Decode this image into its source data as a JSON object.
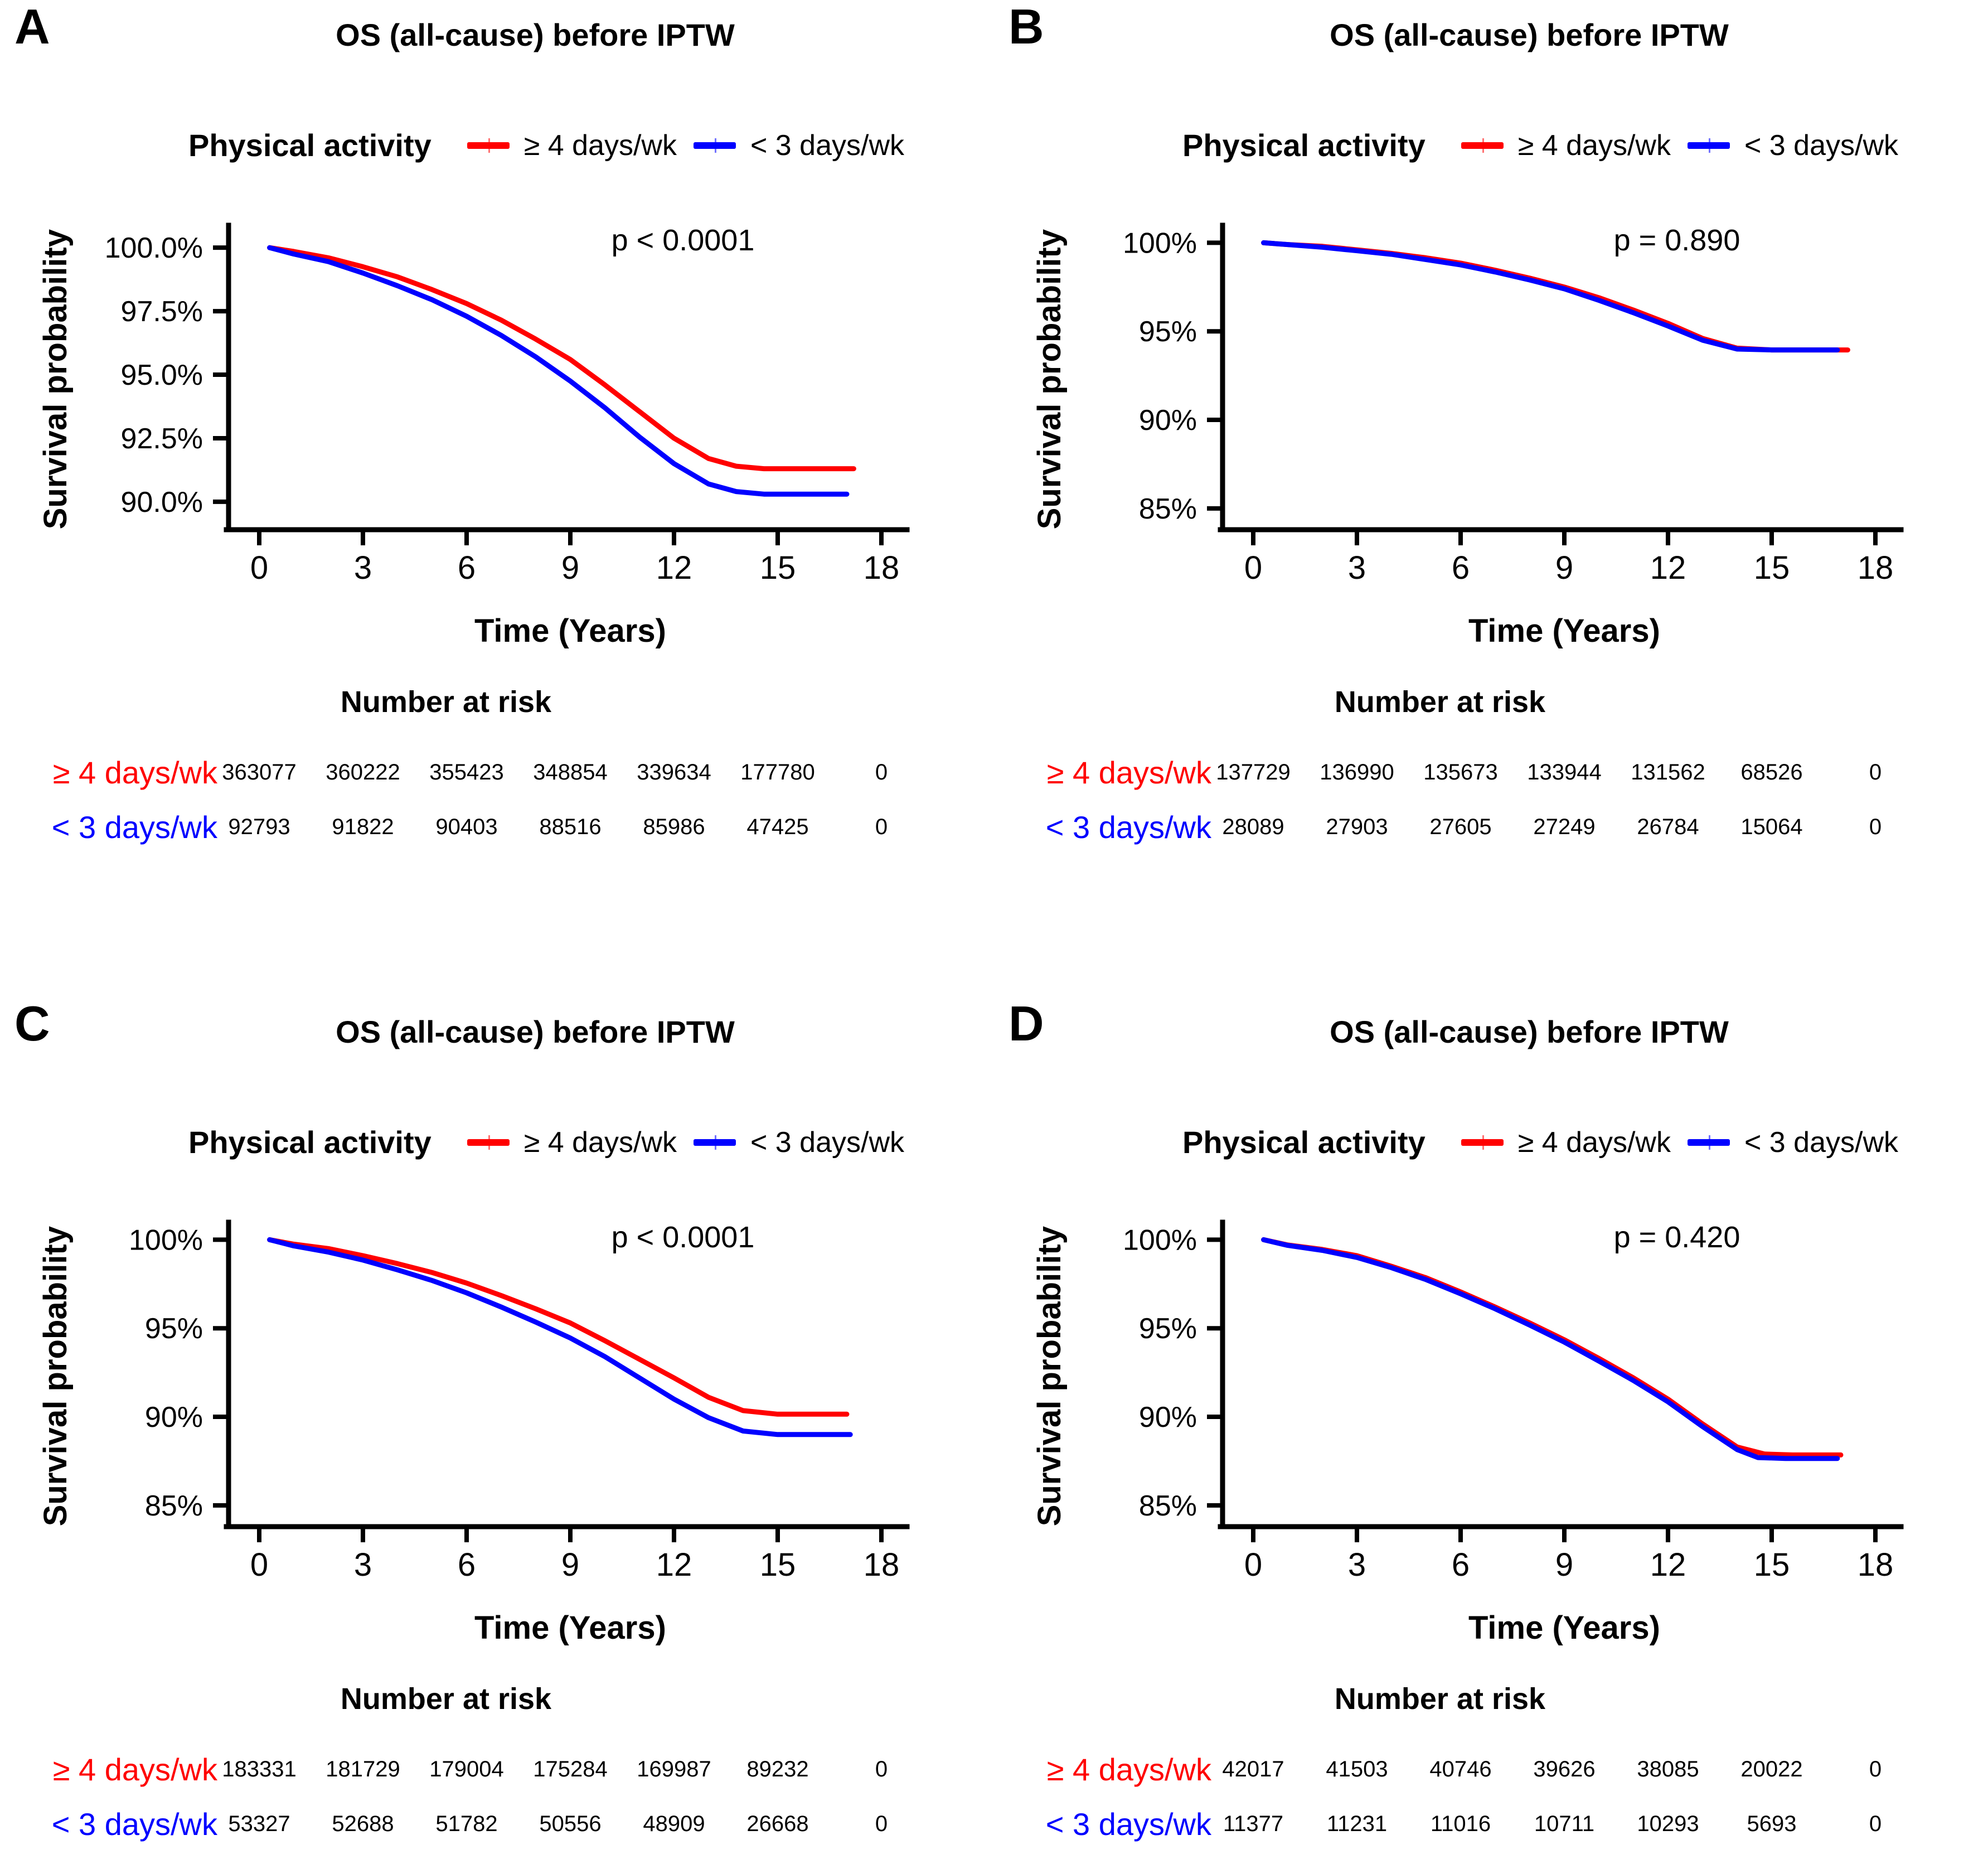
{
  "legend": {
    "title": "Physical activity",
    "series": [
      {
        "label": "≥ 4 days/wk",
        "color": "#FF0000"
      },
      {
        "label": "< 3 days/wk",
        "color": "#0000FF"
      }
    ]
  },
  "axes": {
    "xlabel": "Time (Years)",
    "ylabel": "Survival probability",
    "x_ticks": [
      0,
      3,
      6,
      9,
      12,
      15,
      18
    ],
    "xlim": [
      0,
      18
    ]
  },
  "risk_header": "Number at risk",
  "chart_data": [
    {
      "panel": "A",
      "type": "line",
      "title": "OS (all-cause) before IPTW",
      "p_value": "p < 0.0001",
      "xlabel": "Time (Years)",
      "ylabel": "Survival probability",
      "grid": false,
      "legend_position": "top",
      "y_axis": {
        "ylim": [
          88.9,
          100.75
        ],
        "ticks": [
          {
            "label": "100.0%",
            "value": 100
          },
          {
            "label": "97.5%",
            "value": 97.5
          },
          {
            "label": "95.0%",
            "value": 95
          },
          {
            "label": "92.5%",
            "value": 92.5
          },
          {
            "label": "90.0%",
            "value": 90
          }
        ]
      },
      "series": [
        {
          "name": "≥ 4 days/wk",
          "color": "#FF0000",
          "points": [
            [
              0.3,
              100
            ],
            [
              1,
              99.85
            ],
            [
              2,
              99.6
            ],
            [
              3,
              99.25
            ],
            [
              4,
              98.85
            ],
            [
              5,
              98.35
            ],
            [
              6,
              97.8
            ],
            [
              7,
              97.15
            ],
            [
              8,
              96.4
            ],
            [
              9,
              95.6
            ],
            [
              10,
              94.6
            ],
            [
              11,
              93.55
            ],
            [
              12,
              92.5
            ],
            [
              13,
              91.7
            ],
            [
              13.8,
              91.4
            ],
            [
              14.6,
              91.3
            ],
            [
              17.2,
              91.3
            ]
          ]
        },
        {
          "name": "< 3 days/wk",
          "color": "#0000FF",
          "points": [
            [
              0.3,
              100
            ],
            [
              1,
              99.75
            ],
            [
              2,
              99.45
            ],
            [
              3,
              99.0
            ],
            [
              4,
              98.5
            ],
            [
              5,
              97.95
            ],
            [
              6,
              97.3
            ],
            [
              7,
              96.55
            ],
            [
              8,
              95.7
            ],
            [
              9,
              94.75
            ],
            [
              10,
              93.7
            ],
            [
              11,
              92.55
            ],
            [
              12,
              91.5
            ],
            [
              13,
              90.7
            ],
            [
              13.8,
              90.4
            ],
            [
              14.6,
              90.3
            ],
            [
              17.0,
              90.3
            ]
          ]
        }
      ],
      "number_at_risk": {
        "times": [
          0,
          3,
          6,
          9,
          12,
          15,
          18
        ],
        "rows": [
          {
            "label": "≥ 4 days/wk",
            "color": "#FF0000",
            "counts": [
              363077,
              360222,
              355423,
              348854,
              339634,
              177780,
              0
            ]
          },
          {
            "label": "< 3 days/wk",
            "color": "#0000FF",
            "counts": [
              92793,
              91822,
              90403,
              88516,
              85986,
              47425,
              0
            ]
          }
        ]
      }
    },
    {
      "panel": "B",
      "type": "line",
      "title": "OS (all-cause) before IPTW",
      "p_value": "p = 0.890",
      "xlabel": "Time (Years)",
      "ylabel": "Survival probability",
      "grid": false,
      "legend_position": "top",
      "y_axis": {
        "ylim": [
          83.8,
          100.8
        ],
        "ticks": [
          {
            "label": "100%",
            "value": 100
          },
          {
            "label": "95%",
            "value": 95
          },
          {
            "label": "90%",
            "value": 90
          },
          {
            "label": "85%",
            "value": 85
          }
        ]
      },
      "series": [
        {
          "name": "≥ 4 days/wk",
          "color": "#FF0000",
          "points": [
            [
              0.3,
              100
            ],
            [
              1,
              99.9
            ],
            [
              2,
              99.8
            ],
            [
              3,
              99.6
            ],
            [
              4,
              99.4
            ],
            [
              5,
              99.15
            ],
            [
              6,
              98.85
            ],
            [
              7,
              98.45
            ],
            [
              8,
              98.0
            ],
            [
              9,
              97.5
            ],
            [
              10,
              96.9
            ],
            [
              11,
              96.2
            ],
            [
              12,
              95.45
            ],
            [
              13,
              94.6
            ],
            [
              14,
              94.05
            ],
            [
              15,
              93.95
            ],
            [
              17.2,
              93.95
            ]
          ]
        },
        {
          "name": "< 3 days/wk",
          "color": "#0000FF",
          "points": [
            [
              0.3,
              100
            ],
            [
              1,
              99.9
            ],
            [
              2,
              99.75
            ],
            [
              3,
              99.55
            ],
            [
              4,
              99.35
            ],
            [
              5,
              99.05
            ],
            [
              6,
              98.75
            ],
            [
              7,
              98.35
            ],
            [
              8,
              97.9
            ],
            [
              9,
              97.4
            ],
            [
              10,
              96.75
            ],
            [
              11,
              96.05
            ],
            [
              12,
              95.3
            ],
            [
              13,
              94.5
            ],
            [
              14,
              94.0
            ],
            [
              15,
              93.95
            ],
            [
              16.9,
              93.95
            ]
          ]
        }
      ],
      "number_at_risk": {
        "times": [
          0,
          3,
          6,
          9,
          12,
          15,
          18
        ],
        "rows": [
          {
            "label": "≥ 4 days/wk",
            "color": "#FF0000",
            "counts": [
              137729,
              136990,
              135673,
              133944,
              131562,
              68526,
              0
            ]
          },
          {
            "label": "< 3 days/wk",
            "color": "#0000FF",
            "counts": [
              28089,
              27903,
              27605,
              27249,
              26784,
              15064,
              0
            ]
          }
        ]
      }
    },
    {
      "panel": "C",
      "type": "line",
      "title": "OS (all-cause) before IPTW",
      "p_value": "p < 0.0001",
      "xlabel": "Time (Years)",
      "ylabel": "Survival probability",
      "grid": false,
      "legend_position": "top",
      "y_axis": {
        "ylim": [
          83.8,
          100.8
        ],
        "ticks": [
          {
            "label": "100%",
            "value": 100
          },
          {
            "label": "95%",
            "value": 95
          },
          {
            "label": "90%",
            "value": 90
          },
          {
            "label": "85%",
            "value": 85
          }
        ]
      },
      "series": [
        {
          "name": "≥ 4 days/wk",
          "color": "#FF0000",
          "points": [
            [
              0.3,
              100
            ],
            [
              1,
              99.75
            ],
            [
              2,
              99.5
            ],
            [
              3,
              99.1
            ],
            [
              4,
              98.65
            ],
            [
              5,
              98.15
            ],
            [
              6,
              97.55
            ],
            [
              7,
              96.85
            ],
            [
              8,
              96.1
            ],
            [
              9,
              95.3
            ],
            [
              10,
              94.3
            ],
            [
              11,
              93.25
            ],
            [
              12,
              92.2
            ],
            [
              13,
              91.1
            ],
            [
              14,
              90.35
            ],
            [
              15,
              90.15
            ],
            [
              17.0,
              90.15
            ]
          ]
        },
        {
          "name": "< 3 days/wk",
          "color": "#0000FF",
          "points": [
            [
              0.3,
              100
            ],
            [
              1,
              99.65
            ],
            [
              2,
              99.3
            ],
            [
              3,
              98.85
            ],
            [
              4,
              98.3
            ],
            [
              5,
              97.7
            ],
            [
              6,
              97.0
            ],
            [
              7,
              96.2
            ],
            [
              8,
              95.35
            ],
            [
              9,
              94.45
            ],
            [
              10,
              93.4
            ],
            [
              11,
              92.2
            ],
            [
              12,
              91.0
            ],
            [
              13,
              89.95
            ],
            [
              14,
              89.2
            ],
            [
              15,
              89.0
            ],
            [
              17.1,
              89.0
            ]
          ]
        }
      ],
      "number_at_risk": {
        "times": [
          0,
          3,
          6,
          9,
          12,
          15,
          18
        ],
        "rows": [
          {
            "label": "≥ 4 days/wk",
            "color": "#FF0000",
            "counts": [
              183331,
              181729,
              179004,
              175284,
              169987,
              89232,
              0
            ]
          },
          {
            "label": "< 3 days/wk",
            "color": "#0000FF",
            "counts": [
              53327,
              52688,
              51782,
              50556,
              48909,
              26668,
              0
            ]
          }
        ]
      }
    },
    {
      "panel": "D",
      "type": "line",
      "title": "OS (all-cause) before IPTW",
      "p_value": "p = 0.420",
      "xlabel": "Time (Years)",
      "ylabel": "Survival probability",
      "grid": false,
      "legend_position": "top",
      "y_axis": {
        "ylim": [
          83.8,
          100.8
        ],
        "ticks": [
          {
            "label": "100%",
            "value": 100
          },
          {
            "label": "95%",
            "value": 95
          },
          {
            "label": "90%",
            "value": 90
          },
          {
            "label": "85%",
            "value": 85
          }
        ]
      },
      "series": [
        {
          "name": "≥ 4 days/wk",
          "color": "#FF0000",
          "points": [
            [
              0.3,
              100
            ],
            [
              1,
              99.7
            ],
            [
              2,
              99.45
            ],
            [
              3,
              99.1
            ],
            [
              4,
              98.5
            ],
            [
              5,
              97.85
            ],
            [
              6,
              97.05
            ],
            [
              7,
              96.2
            ],
            [
              8,
              95.3
            ],
            [
              9,
              94.35
            ],
            [
              10,
              93.3
            ],
            [
              11,
              92.2
            ],
            [
              12,
              91.0
            ],
            [
              13,
              89.6
            ],
            [
              14,
              88.3
            ],
            [
              14.8,
              87.9
            ],
            [
              15.6,
              87.85
            ],
            [
              17.0,
              87.85
            ]
          ]
        },
        {
          "name": "< 3 days/wk",
          "color": "#0000FF",
          "points": [
            [
              0.3,
              100
            ],
            [
              1,
              99.68
            ],
            [
              2,
              99.4
            ],
            [
              3,
              99.0
            ],
            [
              4,
              98.42
            ],
            [
              5,
              97.75
            ],
            [
              6,
              96.95
            ],
            [
              7,
              96.1
            ],
            [
              8,
              95.18
            ],
            [
              9,
              94.22
            ],
            [
              10,
              93.15
            ],
            [
              11,
              92.05
            ],
            [
              12,
              90.85
            ],
            [
              13,
              89.45
            ],
            [
              14,
              88.15
            ],
            [
              14.6,
              87.7
            ],
            [
              15.4,
              87.65
            ],
            [
              16.9,
              87.65
            ]
          ]
        }
      ],
      "number_at_risk": {
        "times": [
          0,
          3,
          6,
          9,
          12,
          15,
          18
        ],
        "rows": [
          {
            "label": "≥ 4 days/wk",
            "color": "#FF0000",
            "counts": [
              42017,
              41503,
              40746,
              39626,
              38085,
              20022,
              0
            ]
          },
          {
            "label": "< 3 days/wk",
            "color": "#0000FF",
            "counts": [
              11377,
              11231,
              11016,
              10711,
              10293,
              5693,
              0
            ]
          }
        ]
      }
    }
  ]
}
